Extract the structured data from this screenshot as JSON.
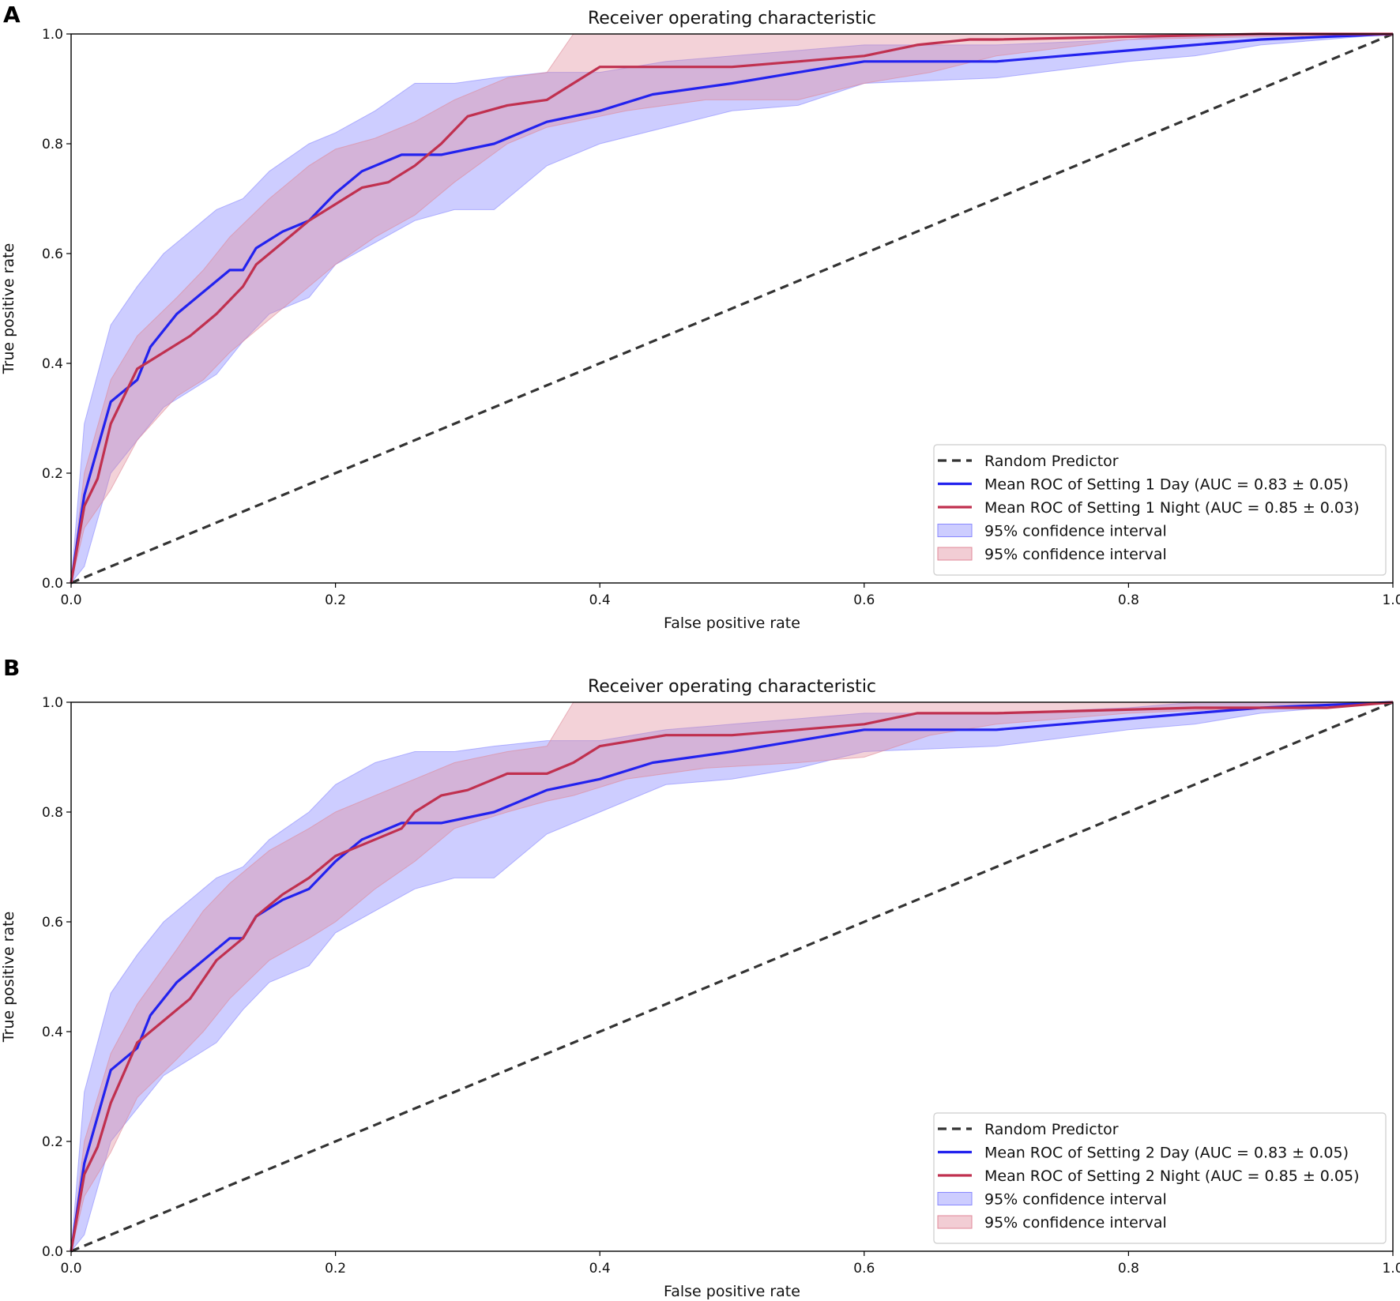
{
  "figure": {
    "colors": {
      "random": "#333333",
      "day_line": "#2222ee",
      "night_line": "#c0304f",
      "day_fill": "#8888ff",
      "night_fill": "#e08898"
    }
  },
  "chart_data": [
    {
      "panel_label": "A",
      "type": "line",
      "title": "Receiver operating characteristic",
      "xlabel": "False positive rate",
      "ylabel": "True positive rate",
      "xlim": [
        0,
        1
      ],
      "ylim": [
        0,
        1
      ],
      "xticks": [
        "0.0",
        "0.2",
        "0.4",
        "0.6",
        "0.8",
        "1.0"
      ],
      "yticks": [
        "0.0",
        "0.2",
        "0.4",
        "0.6",
        "0.8",
        "1.0"
      ],
      "legend_position": "lower-right",
      "legend": [
        "Random Predictor",
        "Mean ROC of Setting 1 Day (AUC = 0.83 ± 0.05)",
        "Mean ROC of Setting 1 Night (AUC = 0.85 ± 0.03)",
        "95% confidence interval",
        "95% confidence interval"
      ],
      "series": [
        {
          "name": "Random Predictor",
          "style": "dashed",
          "color_key": "random",
          "x": [
            0,
            1
          ],
          "y": [
            0,
            1
          ]
        },
        {
          "name": "Mean ROC of Setting 1 Day",
          "color_key": "day_line",
          "x": [
            0,
            0.01,
            0.03,
            0.05,
            0.06,
            0.08,
            0.1,
            0.12,
            0.13,
            0.14,
            0.16,
            0.18,
            0.2,
            0.22,
            0.25,
            0.28,
            0.32,
            0.36,
            0.4,
            0.44,
            0.5,
            0.55,
            0.6,
            0.7,
            0.75,
            0.8,
            0.85,
            0.9,
            1.0
          ],
          "y": [
            0,
            0.16,
            0.33,
            0.37,
            0.43,
            0.49,
            0.53,
            0.57,
            0.57,
            0.61,
            0.64,
            0.66,
            0.71,
            0.75,
            0.78,
            0.78,
            0.8,
            0.84,
            0.86,
            0.89,
            0.91,
            0.93,
            0.95,
            0.95,
            0.96,
            0.97,
            0.98,
            0.99,
            1.0
          ]
        },
        {
          "name": "Mean ROC of Setting 1 Night",
          "color_key": "night_line",
          "x": [
            0,
            0.01,
            0.02,
            0.03,
            0.05,
            0.07,
            0.09,
            0.11,
            0.13,
            0.14,
            0.16,
            0.18,
            0.2,
            0.22,
            0.24,
            0.26,
            0.28,
            0.3,
            0.33,
            0.36,
            0.38,
            0.4,
            0.45,
            0.5,
            0.55,
            0.6,
            0.64,
            0.68,
            0.7,
            0.9,
            1.0
          ],
          "y": [
            0,
            0.14,
            0.19,
            0.29,
            0.39,
            0.42,
            0.45,
            0.49,
            0.54,
            0.58,
            0.62,
            0.66,
            0.69,
            0.72,
            0.73,
            0.76,
            0.8,
            0.85,
            0.87,
            0.88,
            0.91,
            0.94,
            0.94,
            0.94,
            0.95,
            0.96,
            0.98,
            0.99,
            0.99,
            1.0,
            1.0
          ]
        }
      ],
      "confidence_bands": [
        {
          "name": "95% confidence interval (Day)",
          "color_key": "day_fill",
          "x": [
            0,
            0.01,
            0.03,
            0.05,
            0.07,
            0.09,
            0.11,
            0.13,
            0.15,
            0.18,
            0.2,
            0.23,
            0.26,
            0.29,
            0.32,
            0.36,
            0.4,
            0.45,
            0.5,
            0.55,
            0.6,
            0.7,
            0.8,
            0.85,
            0.9,
            1.0
          ],
          "lower": [
            0,
            0.03,
            0.2,
            0.26,
            0.32,
            0.35,
            0.38,
            0.44,
            0.49,
            0.52,
            0.58,
            0.62,
            0.66,
            0.68,
            0.68,
            0.76,
            0.8,
            0.83,
            0.86,
            0.87,
            0.91,
            0.92,
            0.95,
            0.96,
            0.98,
            1.0
          ],
          "upper": [
            0,
            0.29,
            0.47,
            0.54,
            0.6,
            0.64,
            0.68,
            0.7,
            0.75,
            0.8,
            0.82,
            0.86,
            0.91,
            0.91,
            0.92,
            0.93,
            0.93,
            0.95,
            0.96,
            0.97,
            0.98,
            0.98,
            0.99,
            1.0,
            1.0,
            1.0
          ]
        },
        {
          "name": "95% confidence interval (Night)",
          "color_key": "night_fill",
          "x": [
            0,
            0.01,
            0.03,
            0.05,
            0.08,
            0.1,
            0.12,
            0.15,
            0.18,
            0.2,
            0.23,
            0.26,
            0.29,
            0.33,
            0.36,
            0.38,
            0.42,
            0.48,
            0.55,
            0.6,
            0.65,
            0.7,
            0.8,
            1.0
          ],
          "lower": [
            0,
            0.1,
            0.17,
            0.26,
            0.34,
            0.37,
            0.42,
            0.48,
            0.54,
            0.58,
            0.63,
            0.67,
            0.73,
            0.8,
            0.83,
            0.84,
            0.86,
            0.88,
            0.88,
            0.91,
            0.93,
            0.96,
            0.99,
            1.0
          ],
          "upper": [
            0,
            0.2,
            0.37,
            0.45,
            0.52,
            0.57,
            0.63,
            0.7,
            0.76,
            0.79,
            0.81,
            0.84,
            0.88,
            0.92,
            0.93,
            1.0,
            1.0,
            1.0,
            1.0,
            1.0,
            1.0,
            1.0,
            1.0,
            1.0
          ]
        }
      ]
    },
    {
      "panel_label": "B",
      "type": "line",
      "title": "Receiver operating characteristic",
      "xlabel": "False positive rate",
      "ylabel": "True positive rate",
      "xlim": [
        0,
        1
      ],
      "ylim": [
        0,
        1
      ],
      "xticks": [
        "0.0",
        "0.2",
        "0.4",
        "0.6",
        "0.8",
        "1.0"
      ],
      "yticks": [
        "0.0",
        "0.2",
        "0.4",
        "0.6",
        "0.8",
        "1.0"
      ],
      "legend_position": "lower-right",
      "legend": [
        "Random Predictor",
        "Mean ROC of Setting 2 Day (AUC = 0.83 ± 0.05)",
        "Mean ROC of Setting 2 Night (AUC = 0.85 ± 0.05)",
        "95% confidence interval",
        "95% confidence interval"
      ],
      "series": [
        {
          "name": "Random Predictor",
          "style": "dashed",
          "color_key": "random",
          "x": [
            0,
            1
          ],
          "y": [
            0,
            1
          ]
        },
        {
          "name": "Mean ROC of Setting 2 Day",
          "color_key": "day_line",
          "x": [
            0,
            0.01,
            0.03,
            0.05,
            0.06,
            0.08,
            0.1,
            0.12,
            0.13,
            0.14,
            0.16,
            0.18,
            0.2,
            0.22,
            0.25,
            0.28,
            0.32,
            0.36,
            0.4,
            0.44,
            0.5,
            0.55,
            0.6,
            0.7,
            0.75,
            0.8,
            0.85,
            0.9,
            1.0
          ],
          "y": [
            0,
            0.16,
            0.33,
            0.37,
            0.43,
            0.49,
            0.53,
            0.57,
            0.57,
            0.61,
            0.64,
            0.66,
            0.71,
            0.75,
            0.78,
            0.78,
            0.8,
            0.84,
            0.86,
            0.89,
            0.91,
            0.93,
            0.95,
            0.95,
            0.96,
            0.97,
            0.98,
            0.99,
            1.0
          ]
        },
        {
          "name": "Mean ROC of Setting 2 Night",
          "color_key": "night_line",
          "x": [
            0,
            0.01,
            0.02,
            0.03,
            0.05,
            0.07,
            0.09,
            0.11,
            0.13,
            0.14,
            0.16,
            0.18,
            0.2,
            0.22,
            0.25,
            0.26,
            0.28,
            0.3,
            0.33,
            0.36,
            0.38,
            0.4,
            0.45,
            0.5,
            0.55,
            0.6,
            0.64,
            0.7,
            0.85,
            0.95,
            1.0
          ],
          "y": [
            0,
            0.14,
            0.19,
            0.27,
            0.38,
            0.42,
            0.46,
            0.53,
            0.57,
            0.61,
            0.65,
            0.68,
            0.72,
            0.74,
            0.77,
            0.8,
            0.83,
            0.84,
            0.87,
            0.87,
            0.89,
            0.92,
            0.94,
            0.94,
            0.95,
            0.96,
            0.98,
            0.98,
            0.99,
            0.99,
            1.0
          ]
        }
      ],
      "confidence_bands": [
        {
          "name": "95% confidence interval (Day)",
          "color_key": "day_fill",
          "x": [
            0,
            0.01,
            0.03,
            0.05,
            0.07,
            0.09,
            0.11,
            0.13,
            0.15,
            0.18,
            0.2,
            0.23,
            0.26,
            0.29,
            0.32,
            0.36,
            0.4,
            0.45,
            0.5,
            0.55,
            0.6,
            0.7,
            0.8,
            0.85,
            0.9,
            1.0
          ],
          "lower": [
            0,
            0.03,
            0.2,
            0.26,
            0.32,
            0.35,
            0.38,
            0.44,
            0.49,
            0.52,
            0.58,
            0.62,
            0.66,
            0.68,
            0.68,
            0.76,
            0.8,
            0.85,
            0.86,
            0.88,
            0.91,
            0.92,
            0.95,
            0.96,
            0.98,
            1.0
          ],
          "upper": [
            0,
            0.29,
            0.47,
            0.54,
            0.6,
            0.64,
            0.68,
            0.7,
            0.75,
            0.8,
            0.85,
            0.89,
            0.91,
            0.91,
            0.92,
            0.93,
            0.93,
            0.95,
            0.96,
            0.97,
            0.98,
            0.98,
            0.99,
            1.0,
            1.0,
            1.0
          ]
        },
        {
          "name": "95% confidence interval (Night)",
          "color_key": "night_fill",
          "x": [
            0,
            0.01,
            0.03,
            0.05,
            0.08,
            0.1,
            0.12,
            0.15,
            0.18,
            0.2,
            0.23,
            0.26,
            0.29,
            0.33,
            0.36,
            0.38,
            0.42,
            0.48,
            0.55,
            0.6,
            0.65,
            0.7,
            0.8,
            1.0
          ],
          "lower": [
            0,
            0.1,
            0.18,
            0.28,
            0.35,
            0.4,
            0.46,
            0.53,
            0.57,
            0.6,
            0.66,
            0.71,
            0.77,
            0.8,
            0.82,
            0.83,
            0.86,
            0.88,
            0.89,
            0.9,
            0.94,
            0.96,
            0.98,
            1.0
          ],
          "upper": [
            0,
            0.2,
            0.36,
            0.45,
            0.55,
            0.62,
            0.67,
            0.73,
            0.77,
            0.8,
            0.83,
            0.86,
            0.89,
            0.91,
            0.92,
            1.0,
            1.0,
            1.0,
            1.0,
            1.0,
            1.0,
            1.0,
            1.0,
            1.0
          ]
        }
      ]
    }
  ]
}
